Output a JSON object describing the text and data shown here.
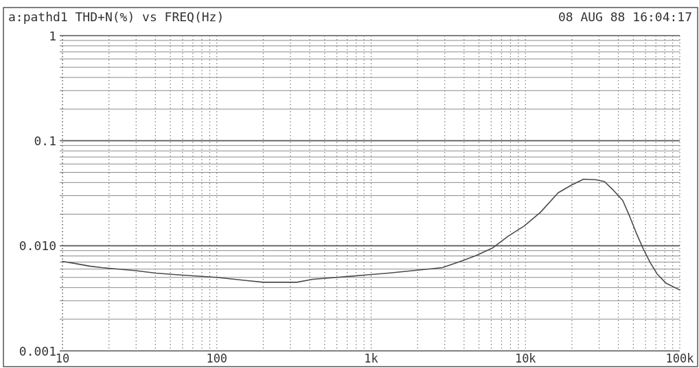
{
  "chart_data": {
    "type": "line",
    "title": "a:pathd1 THD+N(%) vs FREQ(Hz)",
    "subtitle": "08 AUG 88 16:04:17",
    "x": [
      10,
      12,
      15,
      18,
      30,
      40,
      56,
      100,
      150,
      200,
      330,
      420,
      600,
      950,
      1300,
      2100,
      2900,
      3900,
      4800,
      6100,
      7700,
      9800,
      12500,
      16300,
      20000,
      23800,
      28400,
      32400,
      37000,
      42700,
      47400,
      52500,
      58100,
      64400,
      71300,
      81500,
      100000
    ],
    "series": [
      {
        "color": "#4a4a4a",
        "values": [
          0.0071,
          0.0068,
          0.0064,
          0.0062,
          0.0058,
          0.0055,
          0.0053,
          0.005,
          0.0047,
          0.0045,
          0.0045,
          0.0048,
          0.005,
          0.0053,
          0.0055,
          0.0059,
          0.0062,
          0.0072,
          0.0081,
          0.0095,
          0.0123,
          0.0154,
          0.0208,
          0.032,
          0.038,
          0.043,
          0.0425,
          0.041,
          0.034,
          0.027,
          0.019,
          0.013,
          0.0093,
          0.0069,
          0.0054,
          0.0044,
          0.0038
        ]
      }
    ],
    "xlim": [
      10,
      100000
    ],
    "ylim": [
      0.001,
      1
    ],
    "xticks": [
      10,
      {
        "value": 20,
        "label": null
      },
      {
        "value": 30,
        "label": null
      },
      {
        "value": 40,
        "label": null
      },
      {
        "value": 50,
        "label": null
      },
      {
        "value": 60,
        "label": null
      },
      {
        "value": 70,
        "label": null
      },
      {
        "value": 80,
        "label": null
      },
      {
        "value": 90,
        "label": null
      },
      100,
      {
        "value": 200,
        "label": null
      },
      {
        "value": 300,
        "label": null
      },
      {
        "value": 400,
        "label": null
      },
      {
        "value": 500,
        "label": null
      },
      {
        "value": 600,
        "label": null
      },
      {
        "value": 700,
        "label": null
      },
      {
        "value": 800,
        "label": null
      },
      {
        "value": 900,
        "label": null
      },
      {
        "value": 1000,
        "label": "1k"
      },
      {
        "value": 2000,
        "label": null
      },
      {
        "value": 3000,
        "label": null
      },
      {
        "value": 4000,
        "label": null
      },
      {
        "value": 5000,
        "label": null
      },
      {
        "value": 6000,
        "label": null
      },
      {
        "value": 7000,
        "label": null
      },
      {
        "value": 8000,
        "label": null
      },
      {
        "value": 9000,
        "label": null
      },
      {
        "value": 10000,
        "label": "10k"
      },
      {
        "value": 20000,
        "label": null
      },
      {
        "value": 30000,
        "label": null
      },
      {
        "value": 40000,
        "label": null
      },
      {
        "value": 50000,
        "label": null
      },
      {
        "value": 60000,
        "label": null
      },
      {
        "value": 70000,
        "label": null
      },
      {
        "value": 80000,
        "label": null
      },
      {
        "value": 90000,
        "label": null
      },
      {
        "value": 100000,
        "label": "100k"
      }
    ],
    "yticks": [
      0.001,
      {
        "value": 0.002,
        "label": null
      },
      {
        "value": 0.003,
        "label": null
      },
      {
        "value": 0.004,
        "label": null
      },
      {
        "value": 0.005,
        "label": null
      },
      {
        "value": 0.006,
        "label": null
      },
      {
        "value": 0.007,
        "label": null
      },
      {
        "value": 0.008,
        "label": null
      },
      {
        "value": 0.009,
        "label": null
      },
      {
        "value": 0.01,
        "label": "0.010"
      },
      {
        "value": 0.02,
        "label": null
      },
      {
        "value": 0.03,
        "label": null
      },
      {
        "value": 0.04,
        "label": null
      },
      {
        "value": 0.05,
        "label": null
      },
      {
        "value": 0.06,
        "label": null
      },
      {
        "value": 0.07,
        "label": null
      },
      {
        "value": 0.08,
        "label": null
      },
      {
        "value": 0.09,
        "label": null
      },
      0.1,
      {
        "value": 0.2,
        "label": null
      },
      {
        "value": 0.3,
        "label": null
      },
      {
        "value": 0.4,
        "label": null
      },
      {
        "value": 0.5,
        "label": null
      },
      {
        "value": 0.6,
        "label": null
      },
      {
        "value": 0.7,
        "label": null
      },
      {
        "value": 0.8,
        "label": null
      },
      {
        "value": 0.9,
        "label": null
      },
      1
    ],
    "log": "xy",
    "grid": true
  }
}
